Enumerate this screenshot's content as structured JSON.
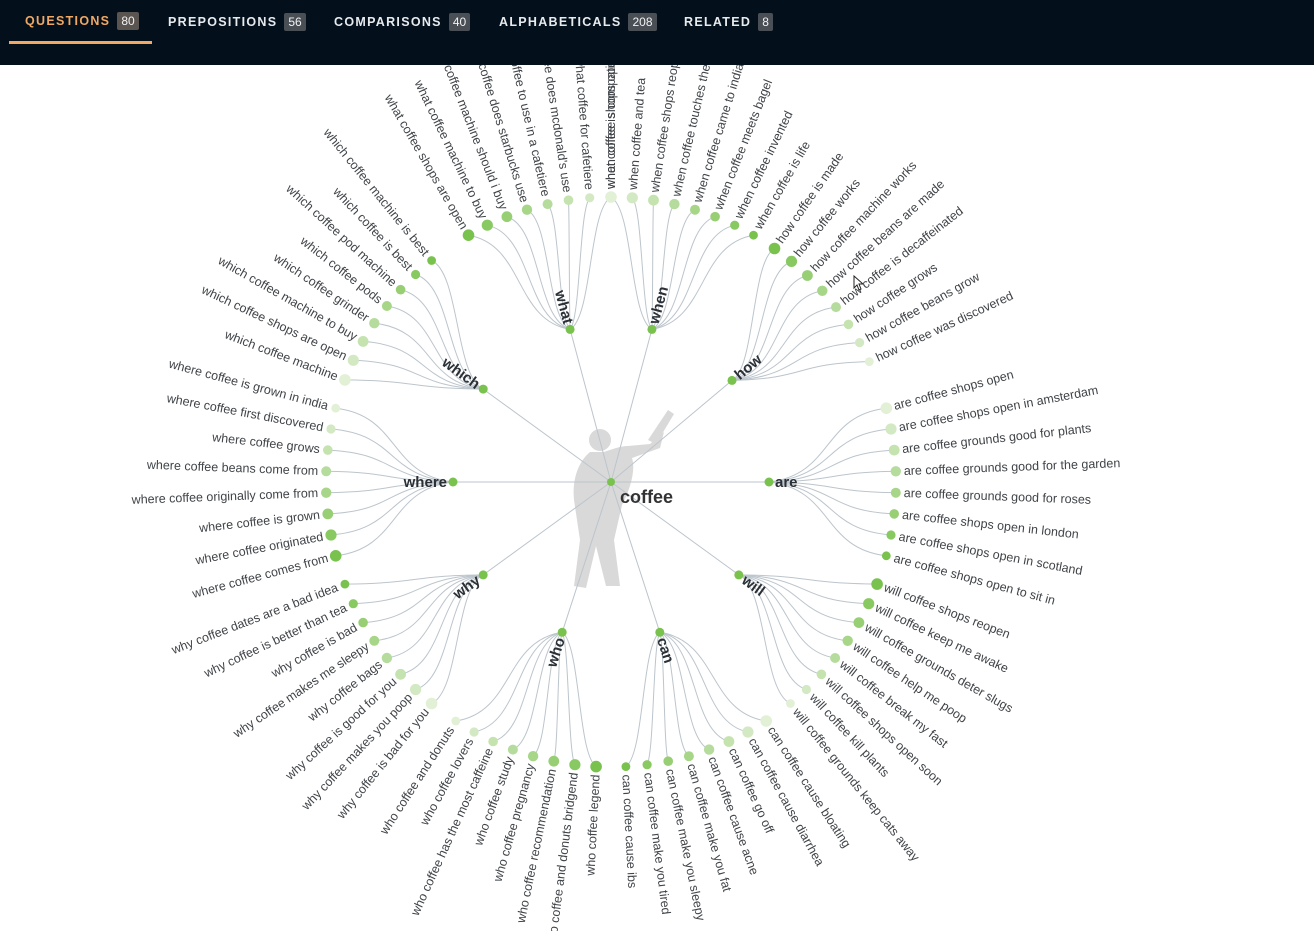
{
  "tabs": [
    {
      "label": "QUESTIONS",
      "count": "80",
      "active": true
    },
    {
      "label": "PREPOSITIONS",
      "count": "56",
      "active": false
    },
    {
      "label": "COMPARISONS",
      "count": "40",
      "active": false
    },
    {
      "label": "ALPHABETICALS",
      "count": "208",
      "active": false
    },
    {
      "label": "RELATED",
      "count": "8",
      "active": false
    }
  ],
  "colors": {
    "header_bg": "#03101c",
    "active_tab": "#f0a864",
    "node_dark": "#7ac24e",
    "node_light": "#e2f0d6",
    "link": "#bcc5cc"
  },
  "wheel": {
    "center": "coffee",
    "branches": [
      {
        "word": "what",
        "items": [
          "what coffee shops are open",
          "what coffee machine to buy",
          "what coffee machine should i buy",
          "what coffee does starbucks use",
          "what coffee to use in a cafetiere",
          "what coffee does mcdonald's use",
          "what coffee for cafetiere",
          "what coffee is compatible with delonghi"
        ]
      },
      {
        "word": "when",
        "items": [
          "when coffee shops open",
          "when coffee and tea",
          "when coffee shops reopen",
          "when coffee touches the bowl",
          "when coffee came to india",
          "when coffee meets bagel",
          "when coffee invented",
          "when coffee is life"
        ]
      },
      {
        "word": "how",
        "items": [
          "how coffee is made",
          "how coffee works",
          "how coffee machine works",
          "how coffee beans are made",
          "how coffee is decaffeinated",
          "how coffee grows",
          "how coffee beans grow",
          "how coffee was discovered"
        ]
      },
      {
        "word": "are",
        "items": [
          "are coffee shops open",
          "are coffee shops open in amsterdam",
          "are coffee grounds good for plants",
          "are coffee grounds good for the garden",
          "are coffee grounds good for roses",
          "are coffee shops open in london",
          "are coffee shops open in scotland",
          "are coffee shops open to sit in"
        ]
      },
      {
        "word": "will",
        "items": [
          "will coffee shops reopen",
          "will coffee keep me awake",
          "will coffee grounds deter slugs",
          "will coffee help me poop",
          "will coffee break my fast",
          "will coffee shops open soon",
          "will coffee kill plants",
          "will coffee grounds keep cats away"
        ]
      },
      {
        "word": "can",
        "items": [
          "can coffee cause bloating",
          "can coffee cause diarrhea",
          "can coffee go off",
          "can coffee cause acne",
          "can coffee make you fat",
          "can coffee make you sleepy",
          "can coffee make you tired",
          "can coffee cause ibs"
        ]
      },
      {
        "word": "who",
        "items": [
          "who coffee legend",
          "who coffee and donuts bridgend",
          "who coffee recommendation",
          "who coffee pregnancy",
          "who coffee study",
          "who coffee has the most caffeine",
          "who coffee lovers",
          "who coffee and donuts"
        ]
      },
      {
        "word": "why",
        "items": [
          "why coffee is bad for you",
          "why coffee makes you poop",
          "why coffee is good for you",
          "why coffee bags",
          "why coffee makes me sleepy",
          "why coffee is bad",
          "why coffee is better than tea",
          "why coffee dates are a bad idea"
        ]
      },
      {
        "word": "where",
        "items": [
          "where coffee comes from",
          "where coffee originated",
          "where coffee is grown",
          "where coffee originally come from",
          "where coffee beans come from",
          "where coffee grows",
          "where coffee first discovered",
          "where coffee is grown in india"
        ]
      },
      {
        "word": "which",
        "items": [
          "which coffee machine",
          "which coffee shops are open",
          "which coffee machine to buy",
          "which coffee grinder",
          "which coffee pods",
          "which coffee pod machine",
          "which coffee is best",
          "which coffee machine is best"
        ]
      }
    ]
  }
}
